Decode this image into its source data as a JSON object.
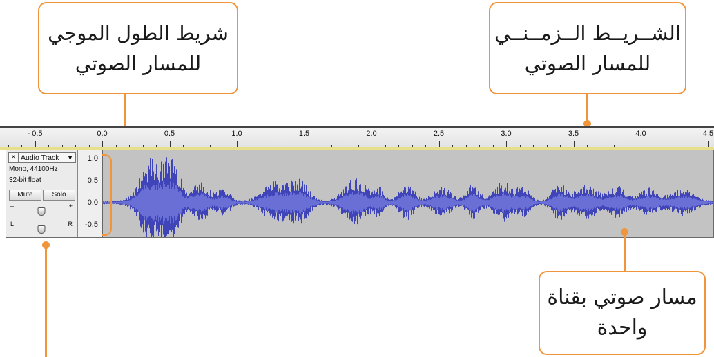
{
  "callouts": {
    "waveform_bar": {
      "line1": "شريط الطول الموجي",
      "line2": "للمسار الصوتي"
    },
    "timeline": {
      "line1": "الشــريــط الــزمــنــي",
      "line2": "للمسار الصوتي"
    },
    "mono_track": {
      "line1": "مسار صوتي بقناة",
      "line2": "واحدة"
    }
  },
  "ruler": {
    "labels": [
      "- 0.5",
      "0.0",
      "0.5",
      "1.0",
      "1.5",
      "2.0",
      "2.5",
      "3.0",
      "3.5",
      "4.0",
      "4.5"
    ]
  },
  "track": {
    "close_glyph": "×",
    "name": "Audio Track",
    "menu_glyph": "▼",
    "info_line1": "Mono, 44100Hz",
    "info_line2": "32-bit float",
    "mute_label": "Mute",
    "solo_label": "Solo",
    "gain": {
      "minus": "–",
      "plus": "+",
      "value": 0.5
    },
    "pan": {
      "left": "L",
      "right": "R",
      "value": 0.5
    }
  },
  "amplitude_scale": [
    "1.0",
    "0.5",
    "0.0",
    "-0.5"
  ],
  "colors": {
    "accent": "#f0953b",
    "waveform": "#3f45b8",
    "waveform_rms": "#6a6fd6",
    "track_bg": "#c3c3c3"
  }
}
